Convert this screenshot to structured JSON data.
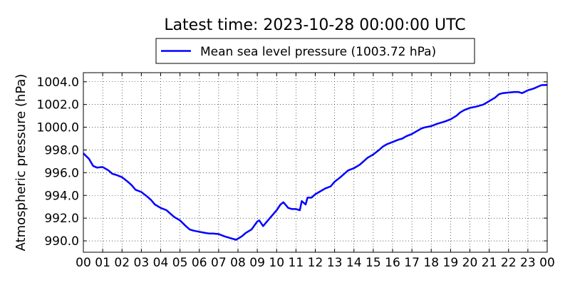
{
  "chart_data": {
    "type": "line",
    "title": "Latest time: 2023-10-28 00:00:00 UTC",
    "xlabel": "",
    "ylabel": "Atmospheric pressure (hPa)",
    "xlim": [
      0,
      24
    ],
    "ylim": [
      989.0,
      1004.8
    ],
    "x_ticks": [
      0,
      1,
      2,
      3,
      4,
      5,
      6,
      7,
      8,
      9,
      10,
      11,
      12,
      13,
      14,
      15,
      16,
      17,
      18,
      19,
      20,
      21,
      22,
      23,
      24
    ],
    "x_tick_labels": [
      "00",
      "01",
      "02",
      "03",
      "04",
      "05",
      "06",
      "07",
      "08",
      "09",
      "10",
      "11",
      "12",
      "13",
      "14",
      "15",
      "16",
      "17",
      "18",
      "19",
      "20",
      "21",
      "22",
      "23",
      "00"
    ],
    "y_ticks": [
      990,
      992,
      994,
      996,
      998,
      1000,
      1002,
      1004
    ],
    "y_tick_labels": [
      "990.0",
      "992.0",
      "994.0",
      "996.0",
      "998.0",
      "1000.0",
      "1002.0",
      "1004.0"
    ],
    "grid": true,
    "legend_position": "top-center",
    "series": [
      {
        "name": "Mean sea level pressure (1003.72 hPa)",
        "color": "#0000ff",
        "x": [
          0.0,
          0.3,
          0.5,
          0.7,
          1.0,
          1.3,
          1.5,
          1.7,
          2.0,
          2.3,
          2.5,
          2.7,
          3.0,
          3.3,
          3.5,
          3.7,
          4.0,
          4.3,
          4.5,
          4.7,
          5.0,
          5.3,
          5.5,
          5.7,
          6.0,
          6.3,
          6.5,
          6.7,
          7.0,
          7.3,
          7.5,
          7.7,
          7.9,
          8.0,
          8.2,
          8.4,
          8.7,
          9.0,
          9.1,
          9.3,
          9.6,
          10.0,
          10.2,
          10.35,
          10.5,
          10.6,
          10.8,
          11.0,
          11.2,
          11.3,
          11.5,
          11.6,
          11.8,
          12.0,
          12.2,
          12.5,
          12.8,
          13.0,
          13.3,
          13.5,
          13.7,
          14.0,
          14.3,
          14.5,
          14.7,
          15.0,
          15.3,
          15.5,
          15.7,
          16.0,
          16.3,
          16.5,
          16.7,
          17.0,
          17.3,
          17.5,
          17.7,
          18.0,
          18.3,
          18.5,
          18.7,
          19.0,
          19.3,
          19.5,
          19.7,
          20.0,
          20.3,
          20.5,
          20.7,
          21.0,
          21.3,
          21.5,
          21.7,
          22.0,
          22.3,
          22.5,
          22.7,
          23.0,
          23.3,
          23.5,
          23.7,
          24.0
        ],
        "values": [
          997.7,
          997.2,
          996.6,
          996.45,
          996.5,
          996.2,
          995.9,
          995.8,
          995.6,
          995.2,
          994.9,
          994.5,
          994.3,
          993.9,
          993.6,
          993.2,
          992.9,
          992.7,
          992.4,
          992.1,
          991.8,
          991.3,
          991.0,
          990.9,
          990.8,
          990.7,
          990.65,
          990.65,
          990.6,
          990.4,
          990.3,
          990.2,
          990.1,
          990.2,
          990.4,
          990.7,
          991.0,
          991.7,
          991.8,
          991.3,
          991.9,
          992.7,
          993.2,
          993.4,
          993.1,
          992.9,
          992.8,
          992.8,
          992.7,
          993.5,
          993.2,
          993.8,
          993.8,
          994.1,
          994.3,
          994.6,
          994.8,
          995.2,
          995.6,
          995.9,
          996.2,
          996.4,
          996.7,
          997.0,
          997.3,
          997.6,
          998.0,
          998.3,
          998.5,
          998.7,
          998.9,
          999.0,
          999.2,
          999.4,
          999.7,
          999.9,
          1000.0,
          1000.1,
          1000.3,
          1000.4,
          1000.5,
          1000.7,
          1001.0,
          1001.3,
          1001.5,
          1001.7,
          1001.8,
          1001.9,
          1002.0,
          1002.3,
          1002.6,
          1002.9,
          1003.0,
          1003.05,
          1003.1,
          1003.1,
          1003.0,
          1003.25,
          1003.4,
          1003.55,
          1003.7,
          1003.72
        ]
      }
    ]
  }
}
